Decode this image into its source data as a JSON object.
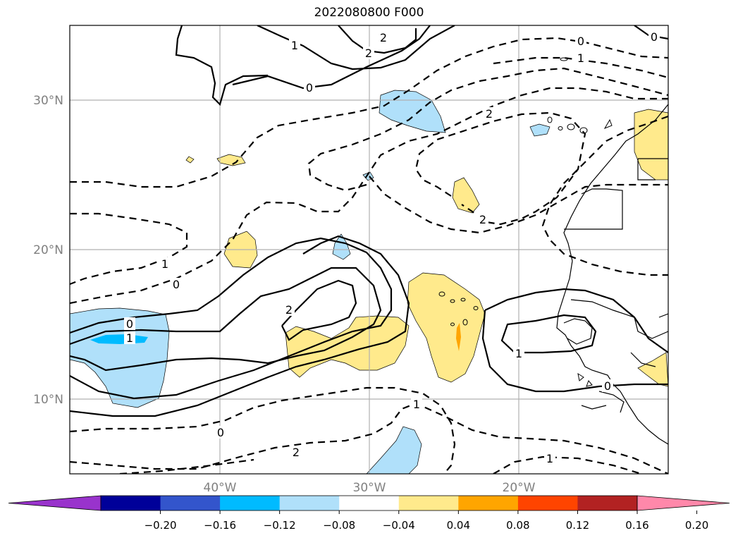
{
  "title": "2022080800 F000",
  "lat_labels": [
    "30°N",
    "20°N",
    "10°N"
  ],
  "lon_labels": [
    "40°W",
    "30°W",
    "20°W"
  ],
  "colorbar": {
    "colors": [
      "#9933cc",
      "#000099",
      "#3355cc",
      "#00bbff",
      "#b0e0fa",
      "#ffffff",
      "#ffea8c",
      "#ffa500",
      "#ff4400",
      "#b22222",
      "#ff88aa"
    ],
    "ticks": [
      "−0.20",
      "−0.16",
      "−0.12",
      "−0.08",
      "−0.04",
      "0.04",
      "0.08",
      "0.12",
      "0.16",
      "0.20"
    ]
  },
  "contour_labels": [
    "2",
    "2",
    "1",
    "0",
    "0",
    "1",
    "2",
    "2",
    "0",
    "1",
    "0",
    "1",
    "2",
    "0",
    "1",
    "1",
    "0",
    "0",
    "1",
    "2"
  ]
}
